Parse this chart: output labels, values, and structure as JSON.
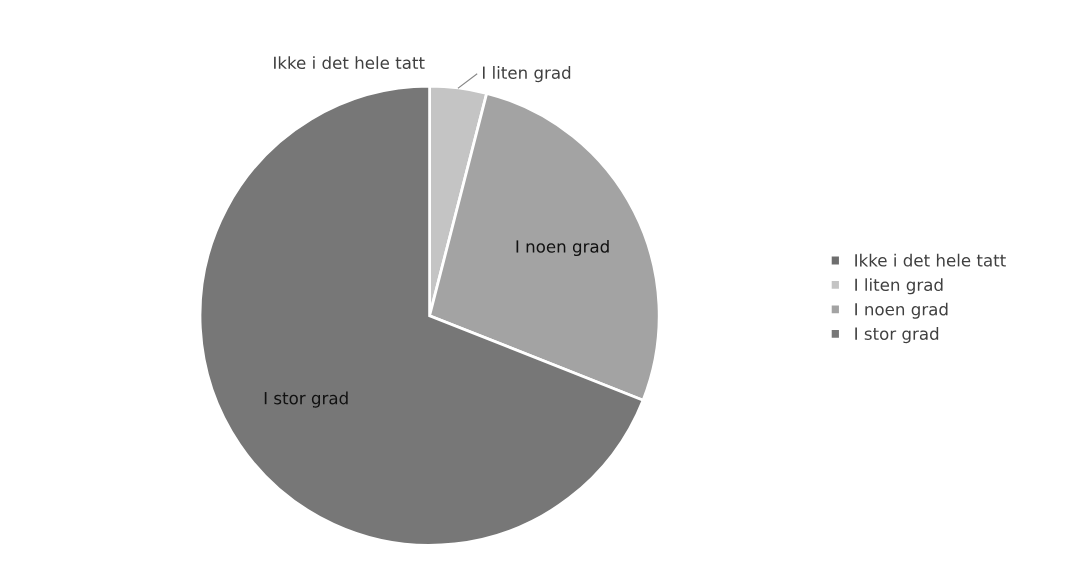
{
  "chart_data": {
    "type": "pie",
    "categories": [
      "Ikke i det hele tatt",
      "I liten grad",
      "I noen grad",
      "I stor grad"
    ],
    "values": [
      0,
      4,
      27,
      69
    ],
    "colors": [
      "#6e6e6e",
      "#c4c4c4",
      "#a3a3a3",
      "#777777"
    ],
    "legend": "right"
  }
}
